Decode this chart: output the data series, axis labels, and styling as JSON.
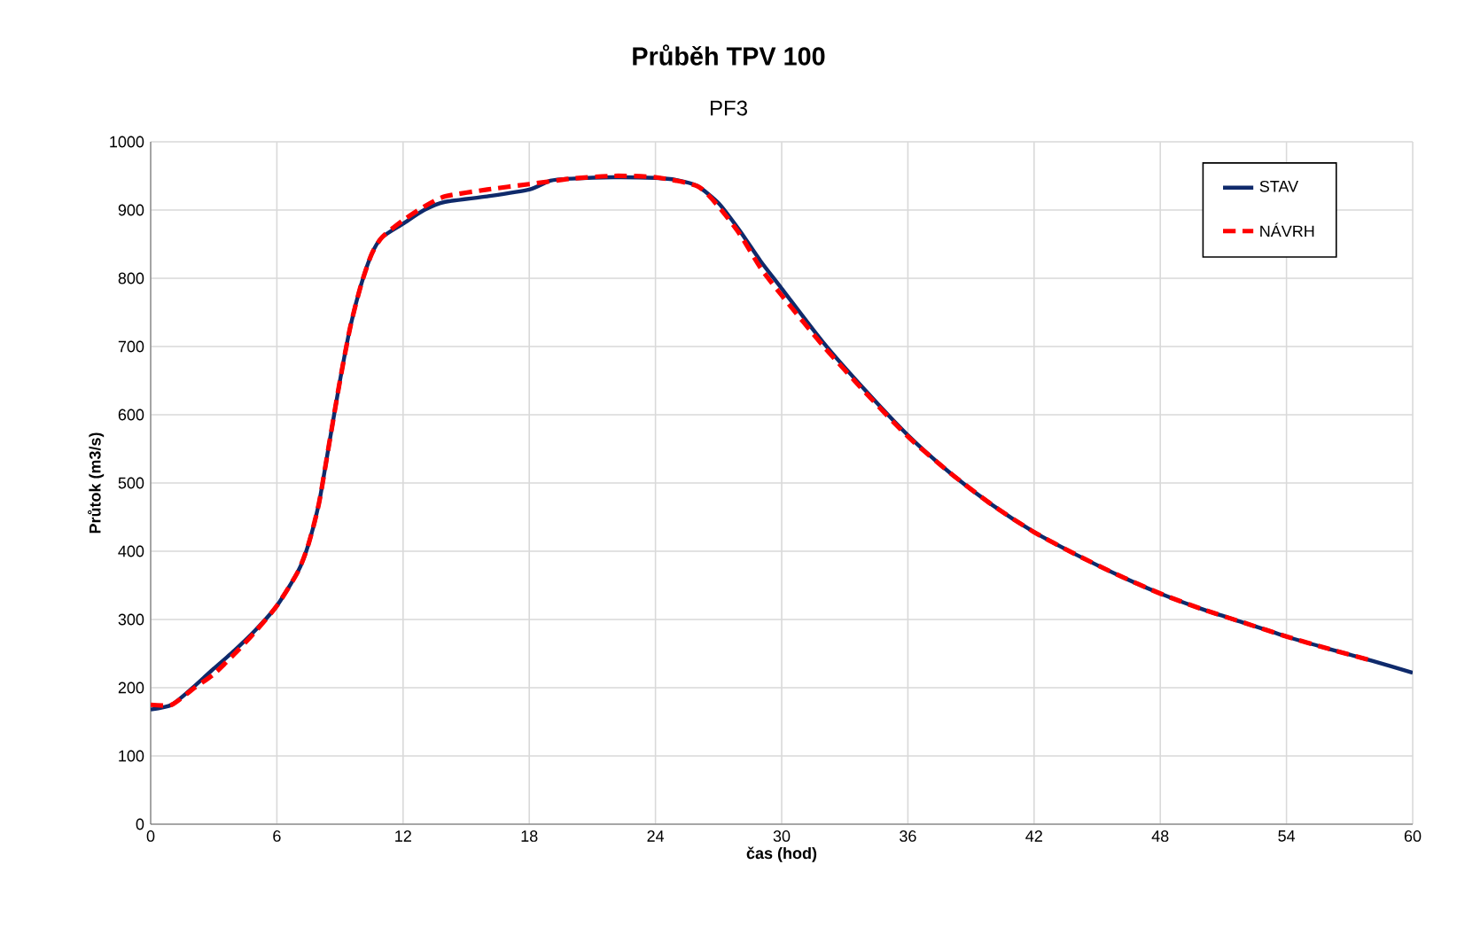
{
  "chart_data": {
    "type": "line",
    "title": "Průběh TPV 100",
    "subtitle": "PF3",
    "xlabel": "čas (hod)",
    "ylabel": "Průtok (m3/s)",
    "xlim": [
      0,
      60
    ],
    "xticks": [
      0,
      6,
      12,
      18,
      24,
      30,
      36,
      42,
      48,
      54,
      60
    ],
    "ylim": [
      0,
      1000
    ],
    "yticks": [
      0,
      100,
      200,
      300,
      400,
      500,
      600,
      700,
      800,
      900,
      1000
    ],
    "grid": true,
    "legend": "top right",
    "marker": "none",
    "series": [
      {
        "name": "STAV",
        "color": "#0f2a6b",
        "line_style": "solid",
        "x": [
          0,
          1,
          2,
          3,
          4,
          5,
          6,
          7,
          7.5,
          8,
          8.5,
          9,
          9.5,
          10,
          10.5,
          11,
          12,
          13,
          14,
          16,
          18,
          19,
          20,
          22,
          24,
          25,
          26,
          27,
          28,
          29,
          30,
          32,
          34,
          36,
          38,
          40,
          42,
          44,
          46,
          48,
          50,
          52,
          54,
          56,
          58,
          60
        ],
        "values": [
          168,
          175,
          200,
          228,
          255,
          285,
          320,
          370,
          410,
          470,
          560,
          650,
          730,
          790,
          835,
          860,
          880,
          900,
          912,
          920,
          930,
          943,
          946,
          948,
          947,
          944,
          935,
          910,
          870,
          825,
          785,
          705,
          635,
          570,
          515,
          468,
          428,
          395,
          365,
          338,
          315,
          295,
          275,
          257,
          240,
          222
        ]
      },
      {
        "name": "NÁVRH",
        "color": "#ff0000",
        "line_style": "dashed",
        "x": [
          0,
          1,
          2,
          3,
          4,
          5,
          6,
          7,
          7.5,
          8,
          8.5,
          9,
          9.5,
          10,
          10.5,
          11,
          12,
          13,
          14,
          16,
          18,
          20,
          22,
          24,
          26,
          27,
          28,
          29,
          30,
          32,
          34,
          36,
          38,
          40,
          42,
          44,
          46,
          48,
          50,
          52,
          54,
          56,
          58
        ],
        "values": [
          175,
          175,
          198,
          220,
          250,
          283,
          320,
          370,
          410,
          470,
          560,
          650,
          730,
          790,
          835,
          860,
          885,
          905,
          920,
          930,
          938,
          946,
          950,
          948,
          935,
          905,
          865,
          815,
          775,
          700,
          632,
          568,
          515,
          468,
          428,
          395,
          365,
          338,
          315,
          295,
          275,
          257,
          240
        ]
      }
    ]
  }
}
